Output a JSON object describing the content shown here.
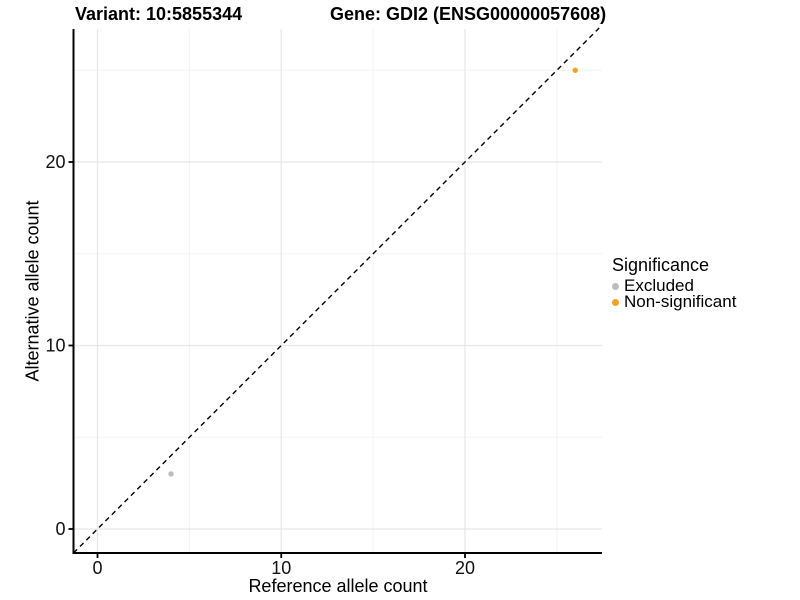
{
  "titles": {
    "variant": "Variant: 10:5855344",
    "gene": "Gene: GDI2 (ENSG00000057608)"
  },
  "chart_data": {
    "type": "scatter",
    "title": "Variant: 10:5855344 / Gene: GDI2 (ENSG00000057608)",
    "xlabel": "Reference allele count",
    "ylabel": "Alternative allele count",
    "legend_title": "Significance",
    "legend_position": "right",
    "xlim": [
      -1.3,
      27.5
    ],
    "ylim": [
      -1.3,
      27.3
    ],
    "x_ticks": [
      0,
      10,
      20
    ],
    "y_ticks": [
      0,
      10,
      20
    ],
    "x_minor_ticks": [
      5,
      15,
      25
    ],
    "y_minor_ticks": [
      5,
      15,
      25
    ],
    "grid": true,
    "identity_line": {
      "style": "dashed",
      "color": "#000000",
      "from": [
        -1.3,
        -1.3
      ],
      "to": [
        27.3,
        27.3
      ]
    },
    "series": [
      {
        "name": "Excluded",
        "color": "#BDBDBD",
        "points": [
          [
            4,
            3
          ]
        ]
      },
      {
        "name": "Non-significant",
        "color": "#F9A11B",
        "points": [
          [
            26,
            25
          ]
        ]
      }
    ],
    "colors": {
      "grid_major": "#e7e7e7",
      "grid_minor": "#f3f3f3",
      "axis": "#000000",
      "tick_label": "#111111"
    }
  }
}
